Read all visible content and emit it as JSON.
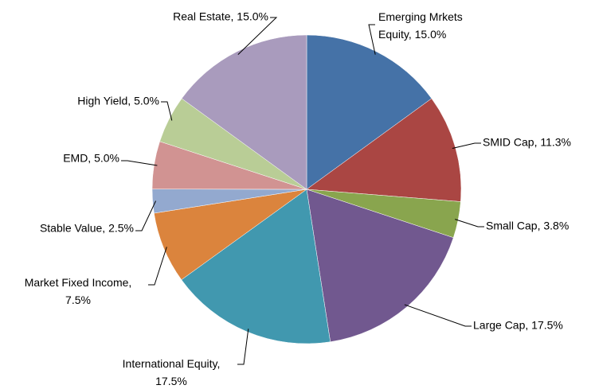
{
  "chart_data": {
    "type": "pie",
    "values": [
      15.0,
      11.3,
      3.8,
      17.5,
      17.5,
      7.5,
      2.5,
      5.0,
      5.0,
      15.0
    ],
    "value_labels": [
      "Emerging Mrkets Equity, 15.0%",
      "SMID Cap, 11.3%",
      "Small Cap, 3.8%",
      "Large Cap, 17.5%",
      "International Equity, 17.5%",
      "Market Fixed Income, 7.5%",
      "Stable Value, 2.5%",
      "EMD, 5.0%",
      "High Yield, 5.0%",
      "Real Estate, 15.0%"
    ],
    "colors": [
      "#4572a7",
      "#aa4643",
      "#89a54e",
      "#71588f",
      "#4198af",
      "#db843d",
      "#93a9cf",
      "#d19392",
      "#b9cd96",
      "#a99bbd"
    ]
  }
}
